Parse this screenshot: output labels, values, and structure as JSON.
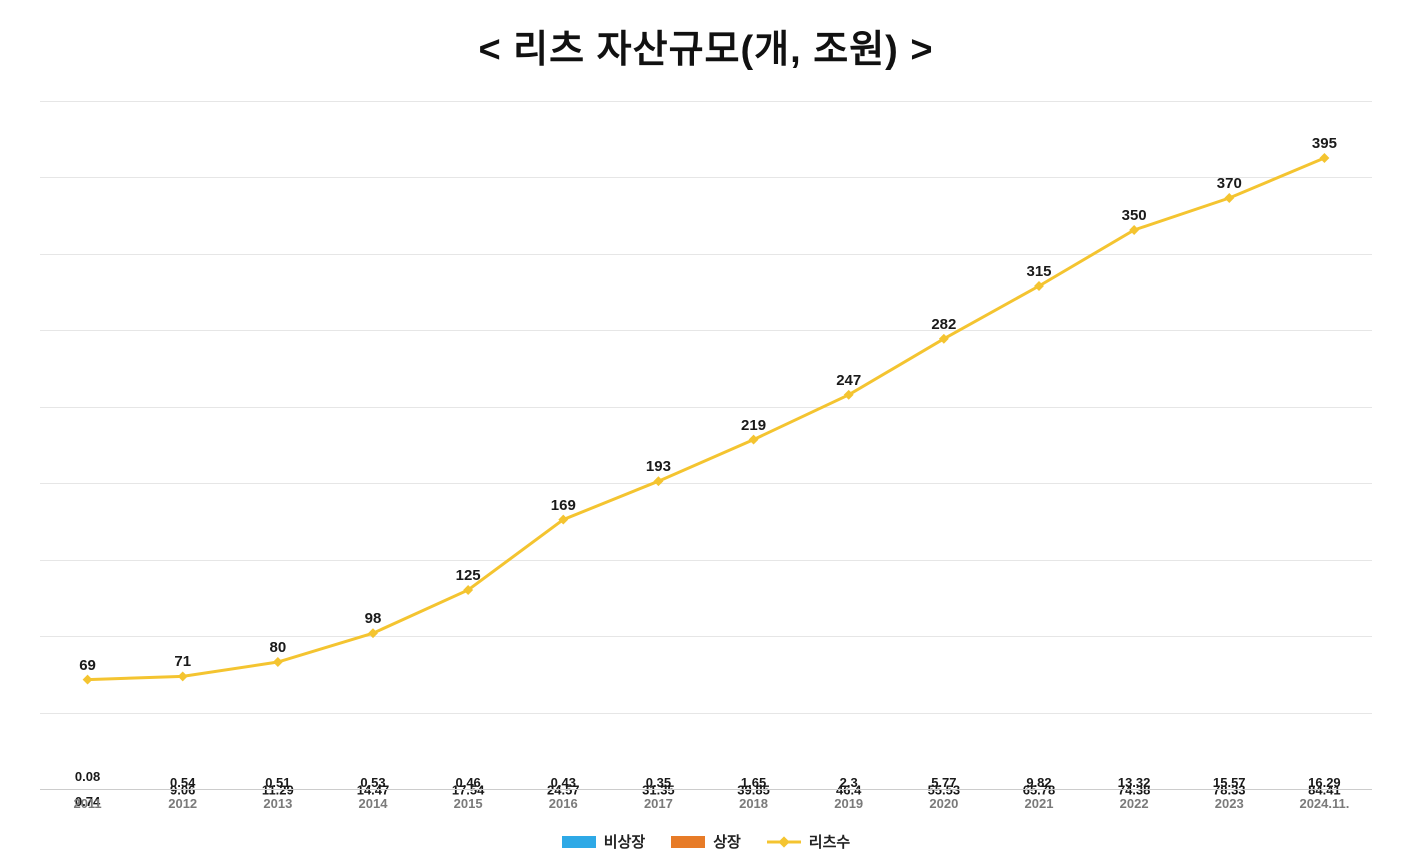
{
  "chart": {
    "type": "stacked-bar+line",
    "title": "< 리츠 자산규모(개, 조원) >",
    "title_fontsize": 38,
    "title_color": "#111111",
    "background_color": "#ffffff",
    "grid_color": "#e6e6e6",
    "grid_lines": 9,
    "categories": [
      "2011",
      "2012",
      "2013",
      "2014",
      "2015",
      "2016",
      "2017",
      "2018",
      "2019",
      "2020",
      "2021",
      "2022",
      "2023",
      "2024.11."
    ],
    "x_label_color": "#7a7a7a",
    "x_label_fontsize": 13,
    "bar_ymax": 110,
    "bar_width_ratio": 0.62,
    "data_label_fontsize": 13,
    "series_bar": [
      {
        "name": "비상장",
        "color": "#2ea9e6",
        "values": [
          0.74,
          9.06,
          11.29,
          14.47,
          17.54,
          24.57,
          31.35,
          39.85,
          46.4,
          55.53,
          65.78,
          74.38,
          78.33,
          84.41
        ]
      },
      {
        "name": "상장",
        "color": "#e77b27",
        "values": [
          0.08,
          0.54,
          0.51,
          0.53,
          0.46,
          0.43,
          0.35,
          1.65,
          2.3,
          5.77,
          9.82,
          13.32,
          15.57,
          16.29
        ]
      }
    ],
    "series_line": {
      "name": "리츠수",
      "color": "#f4c430",
      "marker_color": "#f4c430",
      "marker_size": 7,
      "line_width": 3,
      "ymax": 430,
      "label_fontsize": 15,
      "values": [
        69,
        71,
        80,
        98,
        125,
        169,
        193,
        219,
        247,
        282,
        315,
        350,
        370,
        395
      ]
    },
    "legend": {
      "fontsize": 15,
      "items": [
        {
          "label": "비상장",
          "type": "bar",
          "color": "#2ea9e6"
        },
        {
          "label": "상장",
          "type": "bar",
          "color": "#e77b27"
        },
        {
          "label": "리츠수",
          "type": "line",
          "color": "#f4c430"
        }
      ]
    }
  }
}
